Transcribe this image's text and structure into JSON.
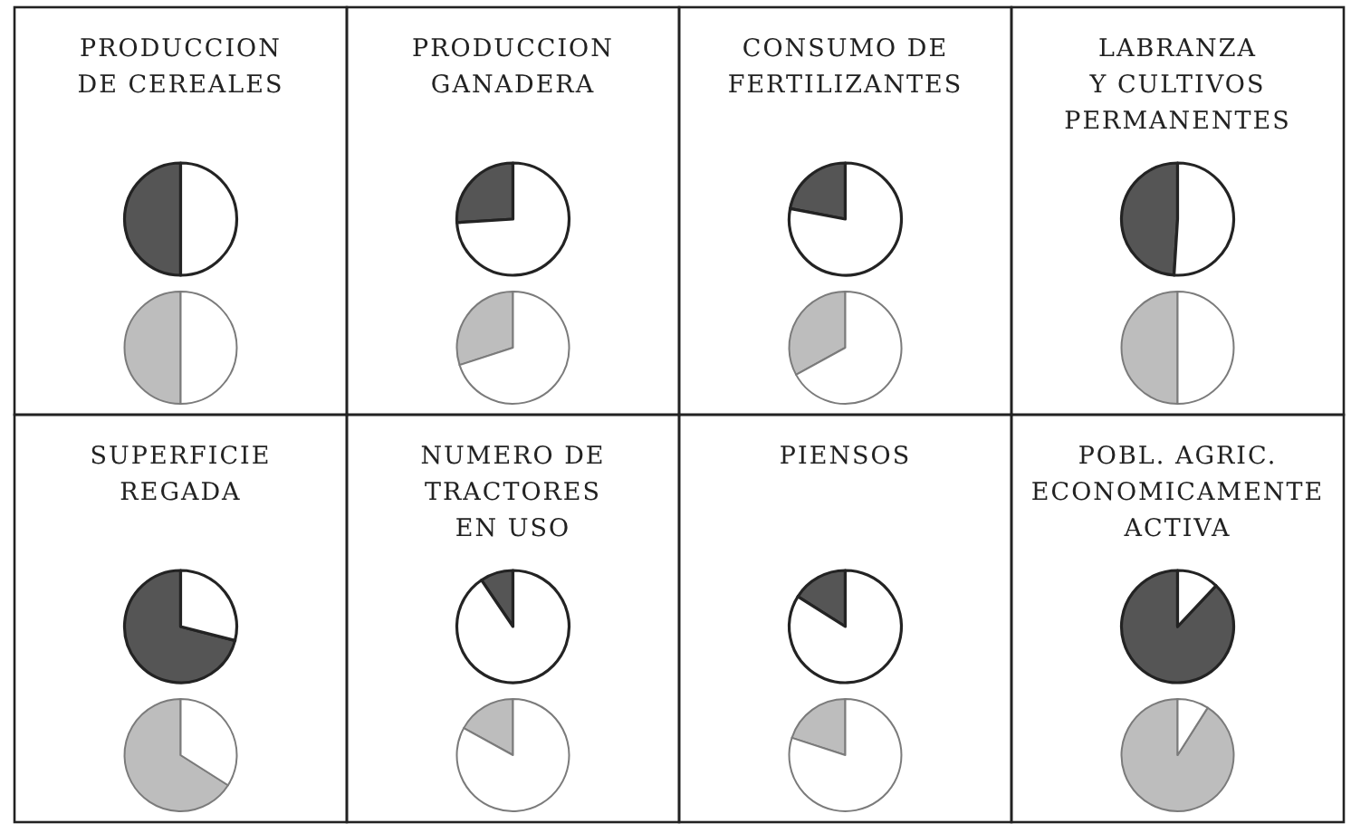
{
  "chart_data": [
    {
      "type": "pie",
      "title": "PRODUCCION\nDE CEREALES",
      "categories": [
        null,
        null
      ],
      "values": [
        50,
        50
      ],
      "colors": [
        "#555555",
        "#ffffff"
      ]
    },
    {
      "type": "pie",
      "categories": [
        null,
        null
      ],
      "values": [
        50,
        50
      ],
      "colors": [
        "#bdbdbd",
        "#ffffff"
      ]
    },
    {
      "type": "pie",
      "title": "PRODUCCION\nGANADERA",
      "categories": [
        null,
        null
      ],
      "values": [
        26,
        74
      ],
      "colors": [
        "#555555",
        "#ffffff"
      ]
    },
    {
      "type": "pie",
      "categories": [
        null,
        null
      ],
      "values": [
        30,
        70
      ],
      "colors": [
        "#bdbdbd",
        "#ffffff"
      ]
    },
    {
      "type": "pie",
      "title": "CONSUMO DE\nFERTILIZANTES",
      "categories": [
        null,
        null
      ],
      "values": [
        22,
        78
      ],
      "colors": [
        "#555555",
        "#ffffff"
      ]
    },
    {
      "type": "pie",
      "categories": [
        null,
        null
      ],
      "values": [
        33,
        67
      ],
      "colors": [
        "#bdbdbd",
        "#ffffff"
      ]
    },
    {
      "type": "pie",
      "title": "LABRANZA\nY CULTIVOS\nPERMANENTES",
      "categories": [
        null,
        null
      ],
      "values": [
        49,
        51
      ],
      "colors": [
        "#555555",
        "#ffffff"
      ]
    },
    {
      "type": "pie",
      "categories": [
        null,
        null
      ],
      "values": [
        50,
        50
      ],
      "colors": [
        "#bdbdbd",
        "#ffffff"
      ]
    },
    {
      "type": "pie",
      "title": "SUPERFICIE\nREGADA",
      "categories": [
        null,
        null
      ],
      "values": [
        71,
        29
      ],
      "colors": [
        "#555555",
        "#ffffff"
      ]
    },
    {
      "type": "pie",
      "categories": [
        null,
        null
      ],
      "values": [
        66,
        34
      ],
      "colors": [
        "#bdbdbd",
        "#ffffff"
      ]
    },
    {
      "type": "pie",
      "title": "NUMERO DE\nTRACTORES\nEN USO",
      "categories": [
        null,
        null
      ],
      "values": [
        9.5,
        90.5
      ],
      "colors": [
        "#555555",
        "#ffffff"
      ]
    },
    {
      "type": "pie",
      "categories": [
        null,
        null
      ],
      "values": [
        17,
        83
      ],
      "colors": [
        "#bdbdbd",
        "#ffffff"
      ]
    },
    {
      "type": "pie",
      "title": "PIENSOS",
      "categories": [
        null,
        null
      ],
      "values": [
        16,
        84
      ],
      "colors": [
        "#555555",
        "#ffffff"
      ]
    },
    {
      "type": "pie",
      "categories": [
        null,
        null
      ],
      "values": [
        20,
        80
      ],
      "colors": [
        "#bdbdbd",
        "#ffffff"
      ]
    },
    {
      "type": "pie",
      "title": "POBL. AGRIC.\nECONOMICAMENTE\nACTIVA",
      "categories": [
        null,
        null
      ],
      "values": [
        88,
        12
      ],
      "colors": [
        "#555555",
        "#ffffff"
      ]
    },
    {
      "type": "pie",
      "categories": [
        null,
        null
      ],
      "values": [
        91,
        9
      ],
      "colors": [
        "#bdbdbd",
        "#ffffff"
      ]
    }
  ]
}
